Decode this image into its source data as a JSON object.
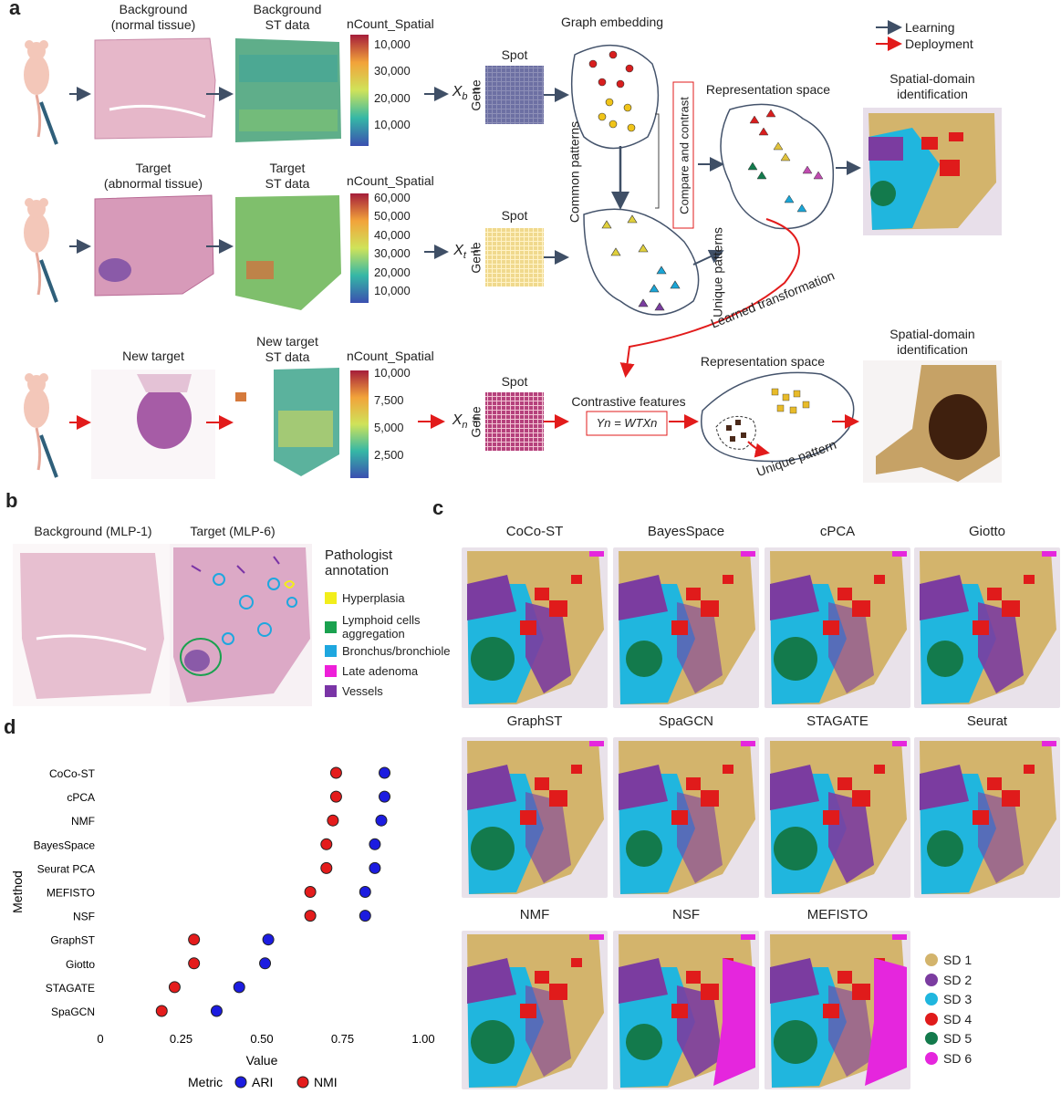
{
  "panels": {
    "a": "a",
    "b": "b",
    "c": "c",
    "d": "d"
  },
  "panel_a": {
    "row1": {
      "tissue": "Background\n(normal tissue)",
      "st": "Background\nST data",
      "colorbar_title": "nCount_Spatial",
      "ticks": [
        "10,000",
        "30,000",
        "20,000",
        "10,000"
      ],
      "x": "X",
      "x_sub": "b",
      "eq": " =",
      "gene": "Gene",
      "spot": "Spot"
    },
    "row2": {
      "tissue": "Target\n(abnormal tissue)",
      "st": "Target\nST data",
      "colorbar_title": "nCount_Spatial",
      "ticks": [
        "60,000",
        "50,000",
        "40,000",
        "30,000",
        "20,000",
        "10,000"
      ],
      "x": "X",
      "x_sub": "t",
      "eq": " =",
      "gene": "Gene",
      "spot": "Spot"
    },
    "row3": {
      "tissue": "New target",
      "st": "New target\nST data",
      "colorbar_title": "nCount_Spatial",
      "ticks": [
        "10,000",
        "7,500",
        "5,000",
        "2,500"
      ],
      "x": "X",
      "x_sub": "n",
      "eq": " =",
      "gene": "Gene",
      "spot": "Spot"
    },
    "graph_embedding": "Graph embedding",
    "common_patterns": "Common patterns",
    "compare_contrast": "Compare and contrast",
    "unique_patterns": "Unique patterns",
    "rep_space1": "Representation space",
    "rep_space2": "Representation space",
    "sdi1": "Spatial-domain\nidentification",
    "sdi2": "Spatial-domain\nidentification",
    "learned_transformation": "Learned transformation",
    "contrastive_features": "Contrastive features",
    "formula": "Yn = WTXn",
    "unique_pattern": "Unique pattern",
    "legend": {
      "learning": "Learning",
      "deployment": "Deployment"
    }
  },
  "panel_b": {
    "background": "Background (MLP-1)",
    "target": "Target (MLP-6)",
    "annotation_title": "Pathologist\nannotation",
    "annotations": [
      {
        "label": "Hyperplasia",
        "color": "#f2ee1b"
      },
      {
        "label": "Lymphoid cells\naggregation",
        "color": "#1aa14f"
      },
      {
        "label": "Bronchus/bronchiole",
        "color": "#1ea7df"
      },
      {
        "label": "Late adenoma",
        "color": "#ee1fd9"
      },
      {
        "label": "Vessels",
        "color": "#7a34a6"
      }
    ]
  },
  "panel_c": {
    "methods": [
      "CoCo-ST",
      "BayesSpace",
      "cPCA",
      "Giotto",
      "GraphST",
      "SpaGCN",
      "STAGATE",
      "Seurat",
      "NMF",
      "NSF",
      "MEFISTO"
    ],
    "legend": [
      {
        "label": "SD 1",
        "color": "#d3b46c"
      },
      {
        "label": "SD 2",
        "color": "#7b3ca0"
      },
      {
        "label": "SD 3",
        "color": "#20b6de"
      },
      {
        "label": "SD 4",
        "color": "#e01b1b"
      },
      {
        "label": "SD 5",
        "color": "#137a4c"
      },
      {
        "label": "SD 6",
        "color": "#e526dd"
      }
    ]
  },
  "chart_data": {
    "type": "scatter",
    "title": "",
    "xlabel": "Value",
    "ylabel": "Method",
    "xlim": [
      0,
      1.0
    ],
    "xticks": [
      "0",
      "0.25",
      "0.50",
      "0.75",
      "1.00"
    ],
    "categories": [
      "CoCo-ST",
      "cPCA",
      "NMF",
      "BayesSpace",
      "Seurat PCA",
      "MEFISTO",
      "NSF",
      "GraphST",
      "Giotto",
      "STAGATE",
      "SpaGCN"
    ],
    "legend_title": "Metric",
    "series": [
      {
        "name": "ARI",
        "color": "#1c1ce0",
        "values": [
          0.88,
          0.88,
          0.87,
          0.85,
          0.85,
          0.82,
          0.82,
          0.52,
          0.51,
          0.43,
          0.36
        ]
      },
      {
        "name": "NMI",
        "color": "#e41c1c",
        "values": [
          0.73,
          0.73,
          0.72,
          0.7,
          0.7,
          0.65,
          0.65,
          0.29,
          0.29,
          0.23,
          0.19
        ]
      }
    ]
  }
}
